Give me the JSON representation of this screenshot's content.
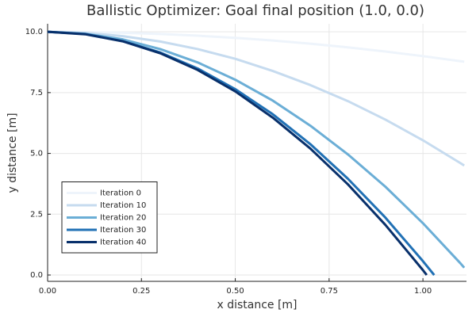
{
  "chart_data": {
    "type": "line",
    "title": "Ballistic Optimizer: Goal final position (1.0, 0.0)",
    "x_label": "x distance [m]",
    "y_label": "y distance [m]",
    "xlim": [
      0,
      1.116
    ],
    "ylim": [
      -0.26,
      10.33
    ],
    "xticks": [
      {
        "value": 0,
        "label": "0.00"
      },
      {
        "value": 0.25,
        "label": "0.25"
      },
      {
        "value": 0.5,
        "label": "0.50"
      },
      {
        "value": 0.75,
        "label": "0.75"
      },
      {
        "value": 1,
        "label": "1.00"
      }
    ],
    "yticks": [
      {
        "value": 0,
        "label": "0.0"
      },
      {
        "value": 2.5,
        "label": "2.5"
      },
      {
        "value": 5,
        "label": "5.0"
      },
      {
        "value": 7.5,
        "label": "7.5"
      },
      {
        "value": 10,
        "label": "10.0"
      }
    ],
    "grid": true,
    "legend_position": "bottom left",
    "series": [
      {
        "name": "Iteration 0",
        "color": "#eef4fb",
        "x": [
          0,
          0.1,
          0.2,
          0.3,
          0.4,
          0.5,
          0.6,
          0.7,
          0.8,
          0.9,
          1.0,
          1.1,
          1.11
        ],
        "values": [
          10,
          9.99,
          9.96,
          9.91,
          9.84,
          9.75,
          9.64,
          9.51,
          9.36,
          9.19,
          9.0,
          8.79,
          8.77
        ]
      },
      {
        "name": "Iteration 10",
        "color": "#c6dbef",
        "x": [
          0,
          0.1,
          0.2,
          0.3,
          0.4,
          0.5,
          0.6,
          0.7,
          0.8,
          0.9,
          1.0,
          1.1,
          1.11
        ],
        "values": [
          10,
          9.96,
          9.82,
          9.6,
          9.29,
          8.89,
          8.39,
          7.81,
          7.15,
          6.39,
          5.54,
          4.6,
          4.5
        ]
      },
      {
        "name": "Iteration 20",
        "color": "#6baed6",
        "x": [
          0,
          0.1,
          0.2,
          0.3,
          0.4,
          0.5,
          0.6,
          0.7,
          0.8,
          0.9,
          1.0,
          1.1,
          1.11
        ],
        "values": [
          10,
          9.92,
          9.69,
          9.29,
          8.74,
          8.03,
          7.17,
          6.14,
          4.96,
          3.63,
          2.13,
          0.48,
          0.3
        ]
      },
      {
        "name": "Iteration 30",
        "color": "#2171b5",
        "x": [
          0,
          0.1,
          0.2,
          0.3,
          0.4,
          0.5,
          0.6,
          0.7,
          0.8,
          0.9,
          1.0,
          1.03
        ],
        "values": [
          10,
          9.91,
          9.62,
          9.15,
          8.49,
          7.64,
          6.61,
          5.38,
          3.96,
          2.36,
          0.57,
          0.0
        ]
      },
      {
        "name": "Iteration 40",
        "color": "#08306b",
        "x": [
          0,
          0.1,
          0.2,
          0.3,
          0.4,
          0.5,
          0.6,
          0.7,
          0.8,
          0.9,
          1.0,
          1.01
        ],
        "values": [
          10,
          9.9,
          9.61,
          9.12,
          8.43,
          7.55,
          6.47,
          5.2,
          3.73,
          2.06,
          0.2,
          0.0
        ]
      }
    ]
  }
}
